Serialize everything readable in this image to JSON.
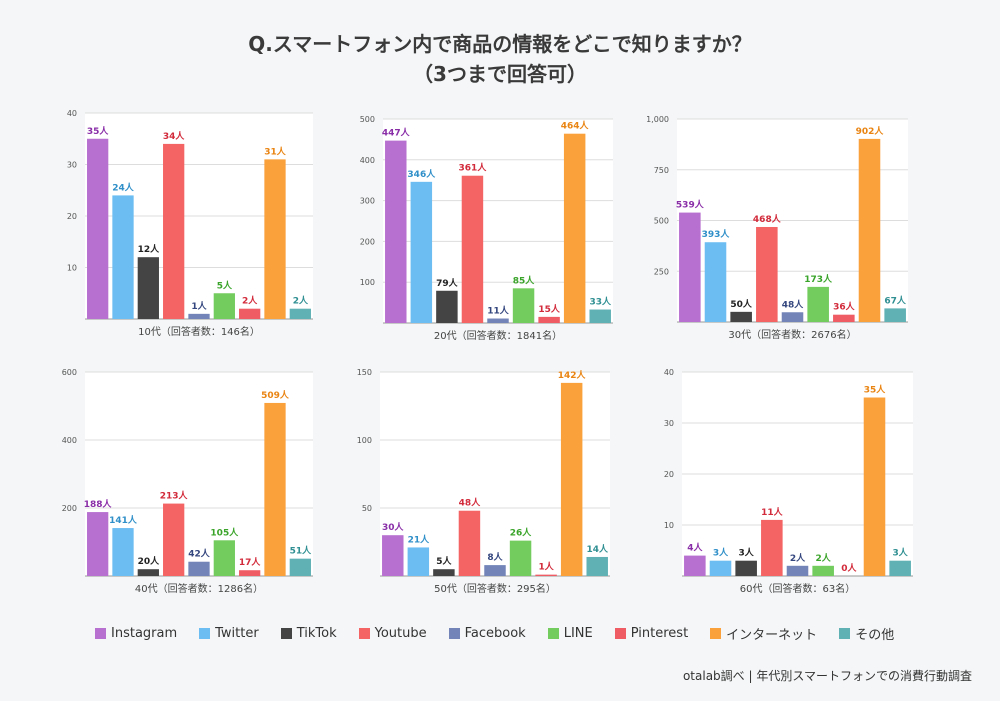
{
  "title": {
    "line1": "Q.スマートフォン内で商品の情報をどこで知りますか？",
    "line2": "（3つまで回答可）"
  },
  "unit_suffix": "人",
  "colors": {
    "Instagram": "#b76fd0",
    "Twitter": "#6cbdf2",
    "TikTok": "#444444",
    "Youtube": "#f46464",
    "Facebook": "#7284b8",
    "LINE": "#73cc5e",
    "Pinterest": "#ef5c64",
    "インターネット": "#fba13c",
    "その他": "#5fb1b4"
  },
  "label_colors": {
    "Instagram": "#8a2ea8",
    "Twitter": "#2f8fc8",
    "TikTok": "#222222",
    "Youtube": "#d22a3a",
    "Facebook": "#34467e",
    "LINE": "#3aa42a",
    "Pinterest": "#d22a3a",
    "インターネット": "#e98412",
    "その他": "#2f8f92"
  },
  "legend": [
    "Instagram",
    "Twitter",
    "TikTok",
    "Youtube",
    "Facebook",
    "LINE",
    "Pinterest",
    "インターネット",
    "その他"
  ],
  "source": "otalab調べ | 年代別スマートフォンでの消費行動調査",
  "chart_data": [
    {
      "type": "bar",
      "title": "10代（回答者数：146名）",
      "categories": [
        "Instagram",
        "Twitter",
        "TikTok",
        "Youtube",
        "Facebook",
        "LINE",
        "Pinterest",
        "インターネット",
        "その他"
      ],
      "values": [
        35,
        24,
        12,
        34,
        1,
        5,
        2,
        31,
        2
      ],
      "ylim": [
        0,
        40
      ],
      "yticks": [
        10,
        20,
        30,
        40
      ],
      "ytick_labels": [
        "10",
        "20",
        "30",
        "40"
      ]
    },
    {
      "type": "bar",
      "title": "20代（回答者数：1841名）",
      "categories": [
        "Instagram",
        "Twitter",
        "TikTok",
        "Youtube",
        "Facebook",
        "LINE",
        "Pinterest",
        "インターネット",
        "その他"
      ],
      "values": [
        447,
        346,
        79,
        361,
        11,
        85,
        15,
        464,
        33
      ],
      "ylim": [
        0,
        500
      ],
      "yticks": [
        100,
        200,
        300,
        400,
        500
      ],
      "ytick_labels": [
        "100",
        "200",
        "300",
        "400",
        "500"
      ]
    },
    {
      "type": "bar",
      "title": "30代（回答者数：2676名）",
      "categories": [
        "Instagram",
        "Twitter",
        "TikTok",
        "Youtube",
        "Facebook",
        "LINE",
        "Pinterest",
        "インターネット",
        "その他"
      ],
      "values": [
        539,
        393,
        50,
        468,
        48,
        173,
        36,
        902,
        67
      ],
      "ylim": [
        0,
        1000
      ],
      "yticks": [
        250,
        500,
        750,
        1000
      ],
      "ytick_labels": [
        "250",
        "500",
        "750",
        "1,000"
      ]
    },
    {
      "type": "bar",
      "title": "40代（回答者数：1286名）",
      "categories": [
        "Instagram",
        "Twitter",
        "TikTok",
        "Youtube",
        "Facebook",
        "LINE",
        "Pinterest",
        "インターネット",
        "その他"
      ],
      "values": [
        188,
        141,
        20,
        213,
        42,
        105,
        17,
        509,
        51
      ],
      "ylim": [
        0,
        600
      ],
      "yticks": [
        200,
        400,
        600
      ],
      "ytick_labels": [
        "200",
        "400",
        "600"
      ]
    },
    {
      "type": "bar",
      "title": "50代（回答者数：295名）",
      "categories": [
        "Instagram",
        "Twitter",
        "TikTok",
        "Youtube",
        "Facebook",
        "LINE",
        "Pinterest",
        "インターネット",
        "その他"
      ],
      "values": [
        30,
        21,
        5,
        48,
        8,
        26,
        1,
        142,
        14
      ],
      "ylim": [
        0,
        150
      ],
      "yticks": [
        50,
        100,
        150
      ],
      "ytick_labels": [
        "50",
        "100",
        "150"
      ]
    },
    {
      "type": "bar",
      "title": "60代（回答者数：63名）",
      "categories": [
        "Instagram",
        "Twitter",
        "TikTok",
        "Youtube",
        "Facebook",
        "LINE",
        "Pinterest",
        "インターネット",
        "その他"
      ],
      "values": [
        4,
        3,
        3,
        11,
        2,
        2,
        0,
        35,
        3
      ],
      "ylim": [
        0,
        40
      ],
      "yticks": [
        10,
        20,
        30,
        40
      ],
      "ytick_labels": [
        "10",
        "20",
        "30",
        "40"
      ]
    }
  ]
}
